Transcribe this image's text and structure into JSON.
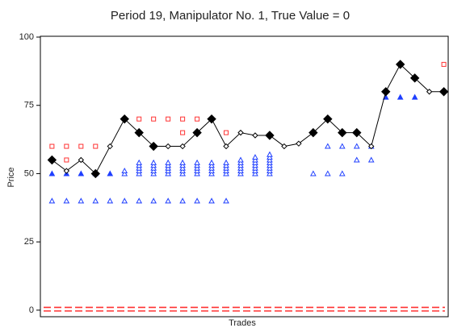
{
  "chart_data": {
    "type": "scatter",
    "title": "Period 19, Manipulator No. 1, True Value = 0",
    "xlabel": "Trades",
    "ylabel": "Price",
    "xlim": [
      0.2,
      28.3
    ],
    "ylim": [
      -2.4,
      100.3
    ],
    "yticks": [
      0,
      25,
      50,
      75,
      100
    ],
    "series": [
      {
        "kind": "hline",
        "color": "#ff3333",
        "dashed": true,
        "values": [
          1,
          -0.3
        ]
      },
      {
        "kind": "scatter",
        "marker": "square",
        "filled": false,
        "color": "#ff3333",
        "x": [
          1,
          2,
          2,
          3,
          4,
          7,
          8,
          9,
          10,
          11,
          10,
          13,
          28
        ],
        "values": [
          60,
          60,
          55,
          60,
          60,
          70,
          70,
          70,
          70,
          70,
          65,
          65,
          90
        ]
      },
      {
        "kind": "scatter",
        "marker": "triangle",
        "filled": true,
        "color": "#1f3fff",
        "x": [
          1,
          2,
          3,
          4,
          5,
          24,
          25,
          26
        ],
        "values": [
          50,
          50,
          50,
          50,
          50,
          78,
          78,
          78
        ]
      },
      {
        "kind": "scatter",
        "marker": "triangle",
        "filled": false,
        "color": "#1f3fff",
        "x": [
          1,
          2,
          3,
          4,
          5,
          6,
          7,
          8,
          9,
          10,
          11,
          12,
          13,
          6,
          6,
          7,
          7,
          7,
          7,
          7,
          8,
          8,
          8,
          8,
          8,
          9,
          9,
          9,
          9,
          9,
          10,
          10,
          10,
          10,
          10,
          11,
          11,
          11,
          11,
          11,
          12,
          12,
          12,
          12,
          12,
          13,
          13,
          13,
          13,
          13,
          14,
          14,
          14,
          14,
          14,
          14,
          15,
          15,
          15,
          15,
          15,
          15,
          15,
          16,
          16,
          16,
          16,
          16,
          16,
          16,
          16,
          19,
          20,
          20,
          21,
          21,
          22,
          22,
          23,
          23
        ],
        "values": [
          40,
          40,
          40,
          40,
          40,
          40,
          40,
          40,
          40,
          40,
          40,
          40,
          40,
          50,
          51,
          50,
          51,
          52,
          53,
          54,
          50,
          51,
          52,
          53,
          54,
          50,
          51,
          52,
          53,
          54,
          50,
          51,
          52,
          53,
          54,
          50,
          51,
          52,
          53,
          54,
          50,
          51,
          52,
          53,
          54,
          50,
          51,
          52,
          53,
          54,
          50,
          51,
          52,
          53,
          54,
          55,
          50,
          51,
          52,
          53,
          54,
          55,
          56,
          50,
          51,
          52,
          53,
          54,
          55,
          56,
          57,
          50,
          60,
          50,
          60,
          50,
          60,
          55,
          60,
          55
        ]
      },
      {
        "kind": "line",
        "marker": "diamond",
        "color": "#000000",
        "x": [
          1,
          2,
          3,
          4,
          5,
          6,
          7,
          8,
          9,
          10,
          11,
          12,
          13,
          14,
          15,
          16,
          17,
          18,
          19,
          20,
          21,
          22,
          23,
          24,
          25,
          26,
          27,
          28
        ],
        "values": [
          55,
          51,
          55,
          50,
          60,
          70,
          65,
          60,
          60,
          60,
          65,
          70,
          60,
          65,
          64,
          64,
          60,
          61,
          65,
          70,
          65,
          65,
          60,
          80,
          90,
          85,
          80,
          80
        ],
        "marker_filled": [
          true,
          false,
          false,
          true,
          false,
          true,
          true,
          true,
          false,
          false,
          true,
          true,
          false,
          false,
          false,
          true,
          false,
          false,
          true,
          true,
          true,
          true,
          false,
          true,
          true,
          true,
          false,
          true
        ]
      }
    ]
  }
}
